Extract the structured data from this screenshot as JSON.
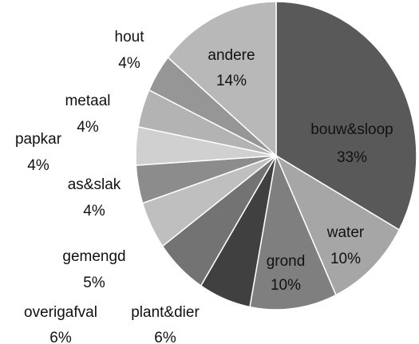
{
  "chart_data": {
    "type": "pie",
    "categories": [
      "bouw&sloop",
      "water",
      "grond",
      "plant&dier",
      "overigafval",
      "gemengd",
      "as&slak",
      "papkar",
      "metaal",
      "hout",
      "andere"
    ],
    "values": [
      33,
      10,
      10,
      6,
      6,
      5,
      4,
      4,
      4,
      4,
      14
    ],
    "value_labels": [
      "33%",
      "10%",
      "10%",
      "6%",
      "6%",
      "5%",
      "4%",
      "4%",
      "4%",
      "4%",
      "14%"
    ],
    "colors": [
      "#595959",
      "#a6a6a6",
      "#7f7f7f",
      "#404040",
      "#737373",
      "#bfbfbf",
      "#8c8c8c",
      "#d0d0d0",
      "#b3b3b3",
      "#969696",
      "#b8b8b8"
    ]
  }
}
